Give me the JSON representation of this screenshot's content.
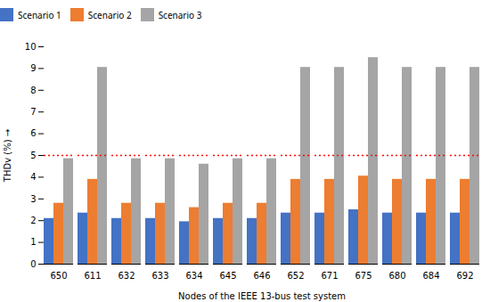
{
  "chart_data": {
    "type": "bar",
    "xlabel": "Nodes of the IEEE 13-bus test system",
    "ylabel": "THDv (%)",
    "categories": [
      "650",
      "611",
      "632",
      "633",
      "634",
      "645",
      "646",
      "652",
      "671",
      "675",
      "680",
      "684",
      "692"
    ],
    "series": [
      {
        "name": "Scenario 1",
        "color": "#4472C4",
        "values": [
          2.1,
          2.35,
          2.1,
          2.1,
          1.95,
          2.1,
          2.1,
          2.35,
          2.35,
          2.5,
          2.35,
          2.35,
          2.35
        ]
      },
      {
        "name": "Scenario 2",
        "color": "#ED7D31",
        "values": [
          2.8,
          3.9,
          2.8,
          2.8,
          2.6,
          2.8,
          2.8,
          3.9,
          3.9,
          4.05,
          3.9,
          3.9,
          3.9
        ]
      },
      {
        "name": "Scenario 3",
        "color": "#A5A5A5",
        "values": [
          4.85,
          9.05,
          4.85,
          4.85,
          4.6,
          4.85,
          4.85,
          9.05,
          9.05,
          9.5,
          9.05,
          9.05,
          9.05
        ]
      }
    ],
    "threshold": {
      "value": 5.0,
      "color": "red",
      "line_style": "dotted"
    },
    "ylim": [
      0,
      10
    ],
    "yticks": [
      0,
      1,
      2,
      3,
      4,
      5,
      6,
      7,
      8,
      9,
      10
    ],
    "grid": false,
    "legend": "top"
  }
}
